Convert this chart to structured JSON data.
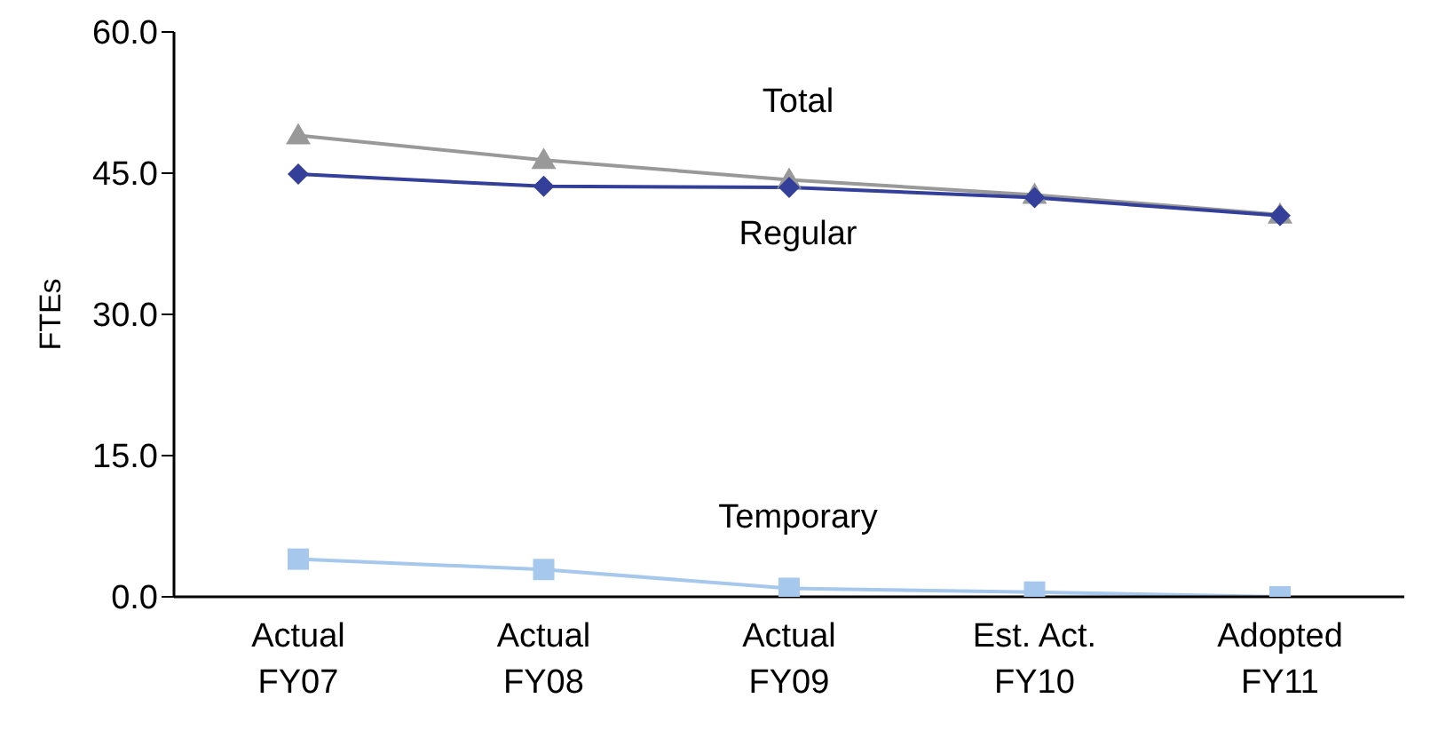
{
  "chart_data": {
    "type": "line",
    "ylabel": "FTEs",
    "categories": [
      "Actual FY07",
      "Actual FY08",
      "Actual FY09",
      "Est. Act. FY10",
      "Adopted FY11"
    ],
    "series": [
      {
        "name": "Total",
        "color": "#999999",
        "marker": "triangle",
        "values": [
          49.0,
          46.4,
          44.3,
          42.7,
          40.6
        ]
      },
      {
        "name": "Regular",
        "color": "#333f99",
        "marker": "diamond",
        "values": [
          44.9,
          43.6,
          43.5,
          42.4,
          40.5
        ]
      },
      {
        "name": "Temporary",
        "color": "#a6c8ec",
        "marker": "square",
        "values": [
          4.0,
          2.9,
          0.9,
          0.5,
          0.0
        ]
      }
    ],
    "ylim": [
      0,
      60
    ],
    "yticks": [
      {
        "value": 0,
        "label": "0.0"
      },
      {
        "value": 15,
        "label": "15.0"
      },
      {
        "value": 30,
        "label": "30.0"
      },
      {
        "value": 45,
        "label": "45.0"
      },
      {
        "value": 60,
        "label": "60.0"
      }
    ],
    "grid": false,
    "legend": false,
    "line_style": "solid"
  }
}
